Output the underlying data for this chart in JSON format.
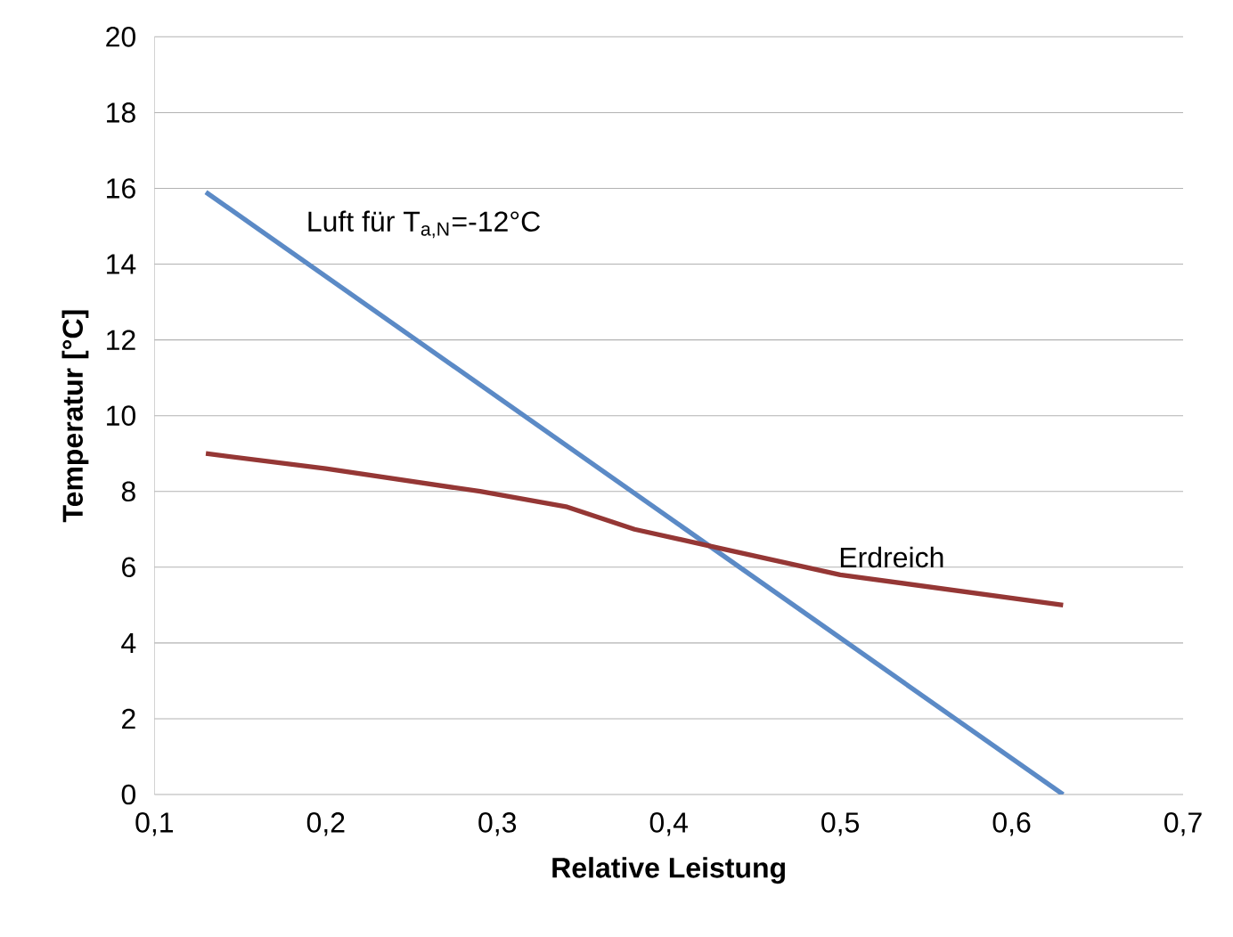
{
  "chart_data": {
    "type": "line",
    "xlabel": "Relative Leistung",
    "ylabel": "Temperatur [°C]",
    "xlim": [
      0.1,
      0.7
    ],
    "ylim": [
      0,
      20
    ],
    "xticks": [
      {
        "value": 0.1,
        "label": "0,1"
      },
      {
        "value": 0.2,
        "label": "0,2"
      },
      {
        "value": 0.3,
        "label": "0,3"
      },
      {
        "value": 0.4,
        "label": "0,4"
      },
      {
        "value": 0.5,
        "label": "0,5"
      },
      {
        "value": 0.6,
        "label": "0,6"
      },
      {
        "value": 0.7,
        "label": "0,7"
      }
    ],
    "yticks": [
      0,
      2,
      4,
      6,
      8,
      10,
      12,
      14,
      16,
      18,
      20
    ],
    "grid": "y",
    "marker": "none",
    "line_style": "solid",
    "series": [
      {
        "color": "#5b8ac6",
        "x": [
          0.13,
          0.63
        ],
        "values": [
          15.9,
          0
        ]
      },
      {
        "color": "#953735",
        "x": [
          0.13,
          0.2,
          0.29,
          0.34,
          0.38,
          0.43,
          0.5,
          0.63
        ],
        "values": [
          9,
          8.6,
          8.0,
          7.6,
          7.0,
          6.5,
          5.8,
          5.0
        ]
      }
    ],
    "annotations": [
      {
        "text": "Luft für T$_{a,N}$=-12°C",
        "x": 0.18,
        "y": 14.3
      },
      {
        "text": "Erdreich",
        "x": 0.53,
        "y": 5.6
      }
    ]
  }
}
